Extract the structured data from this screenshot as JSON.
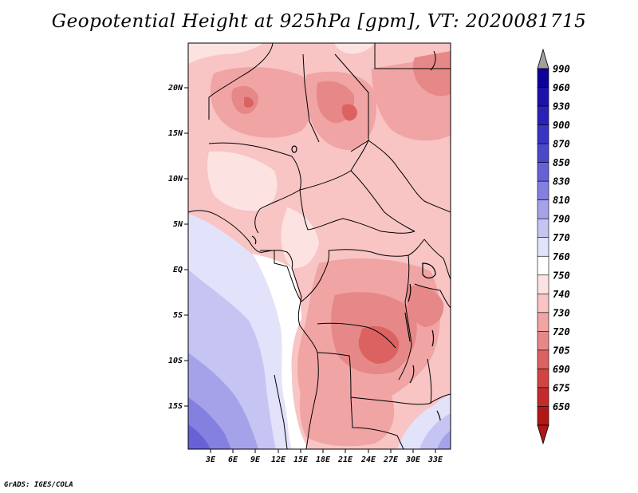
{
  "title": "Geopotential Height at 925hPa [gpm], VT: 2020081715",
  "credit": "GrADS: IGES/COLA",
  "map": {
    "lat_ticks": [
      "20N",
      "15N",
      "10N",
      "5N",
      "EQ",
      "5S",
      "10S",
      "15S"
    ],
    "lon_ticks": [
      "3E",
      "6E",
      "9E",
      "12E",
      "15E",
      "18E",
      "21E",
      "24E",
      "27E",
      "30E",
      "33E"
    ],
    "region": "Central Africa",
    "low_heights_color_side": "red",
    "high_heights_color_side": "blue"
  },
  "colorbar": {
    "levels": [
      {
        "label": "990",
        "color": "#10009a"
      },
      {
        "label": "960",
        "color": "#1c12a8"
      },
      {
        "label": "930",
        "color": "#2a22b6"
      },
      {
        "label": "900",
        "color": "#3a34c2"
      },
      {
        "label": "870",
        "color": "#4c48cc"
      },
      {
        "label": "850",
        "color": "#6662d6"
      },
      {
        "label": "830",
        "color": "#8480e0"
      },
      {
        "label": "810",
        "color": "#a6a2ea"
      },
      {
        "label": "790",
        "color": "#c6c4f2"
      },
      {
        "label": "770",
        "color": "#e2e2fa"
      },
      {
        "label": "760",
        "color": "#ffffff"
      },
      {
        "label": "750",
        "color": "#fde2e2"
      },
      {
        "label": "740",
        "color": "#f8c4c4"
      },
      {
        "label": "730",
        "color": "#f0a4a4"
      },
      {
        "label": "720",
        "color": "#e68888"
      },
      {
        "label": "705",
        "color": "#dc6262"
      },
      {
        "label": "690",
        "color": "#d24444"
      },
      {
        "label": "675",
        "color": "#c42c2c"
      },
      {
        "label": "650",
        "color": "#b01818"
      }
    ],
    "triangle_top_color": "#a0a0a0",
    "triangle_bottom_color": "#b01818"
  }
}
